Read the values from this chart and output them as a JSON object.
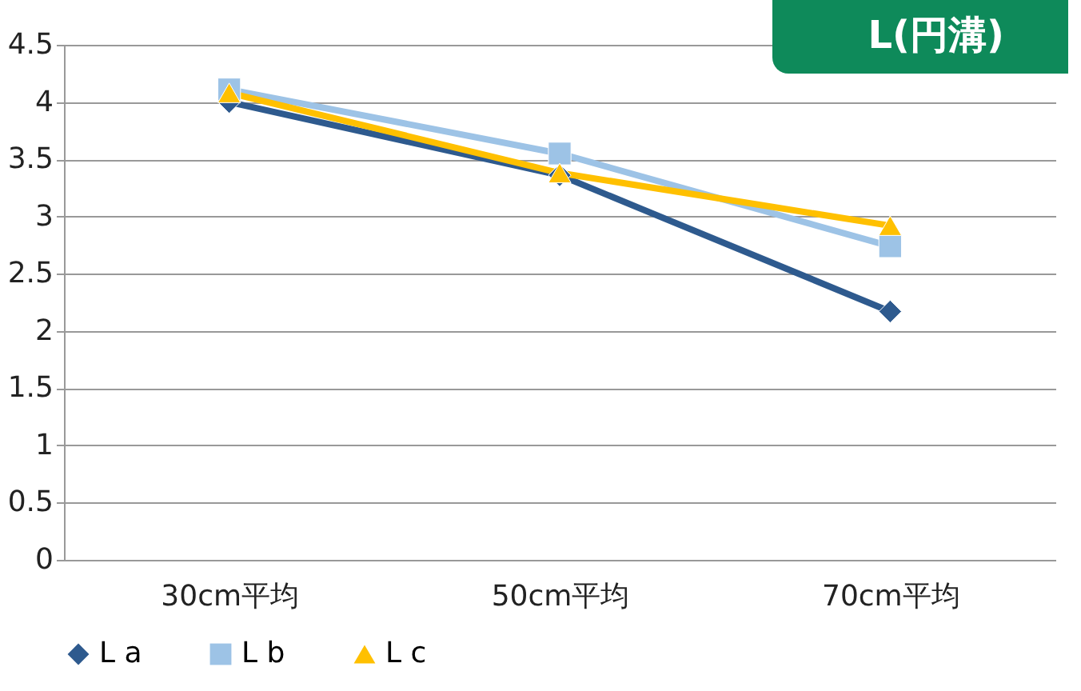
{
  "chart_data": {
    "type": "line",
    "title": "L(円溝)",
    "categories": [
      "30cm平均",
      "50cm平均",
      "70cm平均"
    ],
    "series": [
      {
        "name": "L a",
        "color": "#2e5a8e",
        "marker": "diamond",
        "values": [
          4.0,
          3.36,
          2.17
        ]
      },
      {
        "name": "L b",
        "color": "#9dc3e6",
        "marker": "square",
        "values": [
          4.11,
          3.55,
          2.74
        ]
      },
      {
        "name": "L c",
        "color": "#ffc000",
        "marker": "triangle",
        "values": [
          4.08,
          3.38,
          2.92
        ]
      }
    ],
    "ylim": [
      0,
      4.5
    ],
    "yticks": [
      0,
      0.5,
      1,
      1.5,
      2,
      2.5,
      3,
      3.5,
      4,
      4.5
    ],
    "grid": "y",
    "legend": "bottom",
    "line_style": "solid"
  }
}
